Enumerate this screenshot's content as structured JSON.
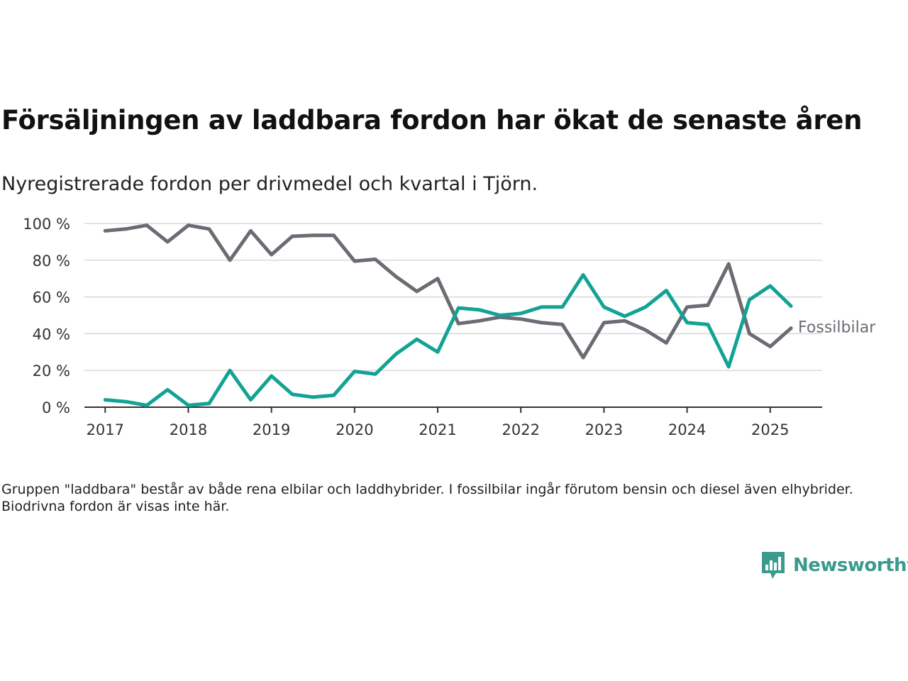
{
  "title": "Försäljningen av laddbara fordon har ökat de senaste åren",
  "subtitle": "Nyregistrerade fordon per drivmedel och kvartal i Tjörn.",
  "note": "Gruppen \"laddbara\" består av både rena elbilar och laddhybrider. I fossilbilar ingår förutom bensin och diesel även elhybrider. Biodrivna fordon är visas inte här.",
  "brand": {
    "name": "Newsworthy",
    "color": "#3a9b8c",
    "icon": "bar-chart-speech-bubble-icon"
  },
  "chart_data": {
    "type": "line",
    "xlabel": "",
    "ylabel": "",
    "ylim": [
      0,
      100
    ],
    "xlim": [
      2016.75,
      2025.625
    ],
    "yticks": [
      0,
      20,
      40,
      60,
      80,
      100
    ],
    "ytick_labels": [
      "0 %",
      "20 %",
      "40 %",
      "60 %",
      "80 %",
      "100 %"
    ],
    "xticks": [
      2017,
      2018,
      2019,
      2020,
      2021,
      2022,
      2023,
      2024,
      2025
    ],
    "xtick_labels": [
      "2017",
      "2018",
      "2019",
      "2020",
      "2021",
      "2022",
      "2023",
      "2024",
      "2025"
    ],
    "grid": "horizontal",
    "x": [
      2017.0,
      2017.25,
      2017.5,
      2017.75,
      2018.0,
      2018.25,
      2018.5,
      2018.75,
      2019.0,
      2019.25,
      2019.5,
      2019.75,
      2020.0,
      2020.25,
      2020.5,
      2020.75,
      2021.0,
      2021.25,
      2021.5,
      2021.75,
      2022.0,
      2022.25,
      2022.5,
      2022.75,
      2023.0,
      2023.25,
      2023.5,
      2023.75,
      2024.0,
      2024.25,
      2024.5,
      2024.75,
      2025.0,
      2025.25
    ],
    "series": [
      {
        "name": "Fossilbilar",
        "color": "#6b6b73",
        "values": [
          96,
          97,
          99,
          90,
          99,
          97,
          80,
          96,
          83,
          93,
          93.5,
          93.5,
          79.5,
          80.5,
          71,
          63,
          70,
          45.5,
          47,
          49,
          48,
          46,
          45,
          27,
          46,
          47,
          42,
          35,
          54.5,
          55.5,
          78,
          40,
          33,
          43
        ]
      },
      {
        "name": "",
        "color": "#12a394",
        "values": [
          4,
          3,
          1,
          9.5,
          1,
          2,
          20,
          4,
          17,
          7,
          5.5,
          6.5,
          19.5,
          18,
          29,
          37,
          30,
          54,
          53,
          50,
          51,
          54.5,
          54.5,
          72,
          54.5,
          49.5,
          54.5,
          63.5,
          46,
          45,
          22,
          58.5,
          66,
          55
        ]
      }
    ]
  }
}
